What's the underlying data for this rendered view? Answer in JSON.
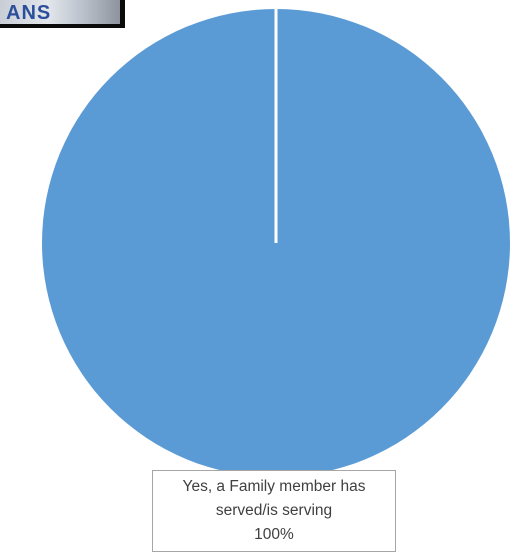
{
  "corner_image": {
    "icon": "photo-fragment",
    "visible_lettering": "ANS"
  },
  "chart_data": {
    "type": "pie",
    "slices": [
      {
        "label_lines": [
          "Yes, a Family member has",
          "served/is serving"
        ],
        "percent_label": "100%",
        "value": 100,
        "color": "#5b9bd5"
      }
    ],
    "separator_color": "#ffffff",
    "label_border_color": "#a6a6a6",
    "label_text_color": "#404040"
  }
}
